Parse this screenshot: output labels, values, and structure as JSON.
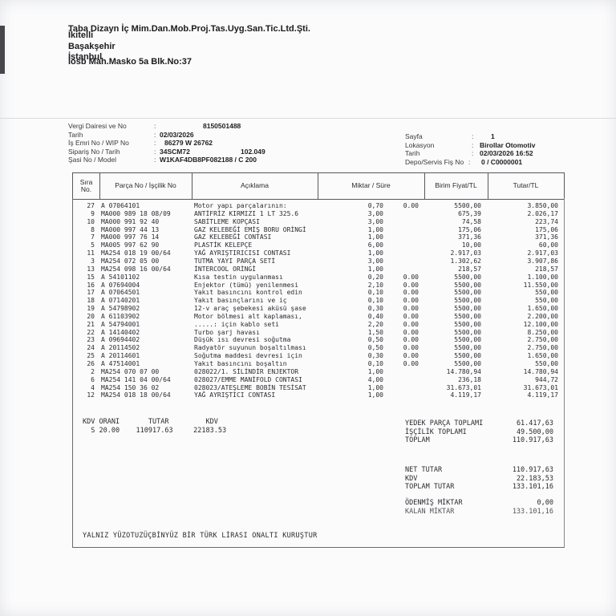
{
  "company": {
    "name": "Taba Dizayn İç Mim.Dan.Mob.Proj.Tas.Uyg.San.Tic.Ltd.Şti.",
    "street": "İosb Mah.Masko 5a Blk.No:37",
    "district": "İkitelli",
    "town": "Başakşehir",
    "city": "İstanbul"
  },
  "info_left": [
    {
      "label": "Vergi Dairesi ve No",
      "value": "8150501488"
    },
    {
      "label": "Tarih",
      "value": "02/03/2026"
    },
    {
      "label": "İş Emri No / WIP No",
      "value": "86279 W 26762"
    },
    {
      "label": "Sipariş No / Tarih",
      "value": "34SCM72",
      "extra": "102.049"
    },
    {
      "label": "Şasi No / Model",
      "value": "W1KAF4DB8PF082188  / C 200"
    }
  ],
  "info_right": [
    {
      "label": "Sayfa",
      "value": "1"
    },
    {
      "label": "Lokasyon",
      "value": "Birollar Otomotiv"
    },
    {
      "label": "Tarih",
      "value": "02/03/2026 16:52"
    },
    {
      "label": "Depo/Servis Fiş No",
      "value": "0 / C0000001"
    }
  ],
  "table": {
    "headers": {
      "no_line1": "Sıra",
      "no_line2": "No.",
      "part": "Parça No / İşçilik No",
      "desc": "Açıklama",
      "qty": "Miktar / Süre",
      "unit": "Birim Fiyat/TL",
      "total": "Tutar/TL"
    },
    "rows": [
      {
        "no": "27",
        "part": "A  07064101",
        "desc": "Motor yapı parçalarının:",
        "qty": "0,70",
        "sure": "0.00",
        "unit": "5500,00",
        "total": "3.850,00"
      },
      {
        "no": "9",
        "part": "MA000 989 18 08/09",
        "desc": "ANTİFRİZ KIRMIZI 1 LT 325.6",
        "qty": "3,00",
        "sure": "",
        "unit": "675,39",
        "total": "2.026,17"
      },
      {
        "no": "10",
        "part": "MA000 991 92 40",
        "desc": "SABİTLEME KOPÇASI",
        "qty": "3,00",
        "sure": "",
        "unit": "74,58",
        "total": "223,74"
      },
      {
        "no": "8",
        "part": "MA000 997 44 13",
        "desc": "GAZ KELEBEĞİ EMİŞ BORU ORİNGİ",
        "qty": "1,00",
        "sure": "",
        "unit": "175,06",
        "total": "175,06"
      },
      {
        "no": "7",
        "part": "MA000 997 76 14",
        "desc": "GAZ KELEBEĞİ CONTASI",
        "qty": "1,00",
        "sure": "",
        "unit": "371,36",
        "total": "371,36"
      },
      {
        "no": "5",
        "part": "MA005 997 62 90",
        "desc": "PLASTİK KELEPÇE",
        "qty": "6,00",
        "sure": "",
        "unit": "10,00",
        "total": "60,00"
      },
      {
        "no": "11",
        "part": "MA254 018 19 00/64",
        "desc": "YAĞ AYRIŞTIRICISI CONTASI",
        "qty": "1,00",
        "sure": "",
        "unit": "2.917,03",
        "total": "2.917,03"
      },
      {
        "no": "3",
        "part": "MA254 072 05 00",
        "desc": "TUTMA YAYI PARÇA SETİ",
        "qty": "3,00",
        "sure": "",
        "unit": "1.302,62",
        "total": "3.907,86"
      },
      {
        "no": "13",
        "part": "MA254 098 16 00/64",
        "desc": "İNTERCOOL ORİNGİ",
        "qty": "1,00",
        "sure": "",
        "unit": "218,57",
        "total": "218,57"
      },
      {
        "no": "15",
        "part": "A  54101102",
        "desc": "Kısa testin uygulanması",
        "qty": "0,20",
        "sure": "0.00",
        "unit": "5500,00",
        "total": "1.100,00"
      },
      {
        "no": "16",
        "part": "A  07694004",
        "desc": "Enjektor (tümü) yenilenmesi",
        "qty": "2,10",
        "sure": "0.00",
        "unit": "5500,00",
        "total": "11.550,00"
      },
      {
        "no": "17",
        "part": "A  07064501",
        "desc": "Yakıt basıncını kontrol edin",
        "qty": "0,10",
        "sure": "0.00",
        "unit": "5500,00",
        "total": "550,00"
      },
      {
        "no": "18",
        "part": "A  07140201",
        "desc": "Yakıt basınçlarını ve iç",
        "qty": "0,10",
        "sure": "0.00",
        "unit": "5500,00",
        "total": "550,00"
      },
      {
        "no": "19",
        "part": "A  54798902",
        "desc": "12-v araç şebekesi aküsü şase",
        "qty": "0,30",
        "sure": "0.00",
        "unit": "5500,00",
        "total": "1.650,00"
      },
      {
        "no": "20",
        "part": "A  61103902",
        "desc": "Motor bölmesi alt kaplaması,",
        "qty": "0,40",
        "sure": "0.00",
        "unit": "5500,00",
        "total": "2.200,00"
      },
      {
        "no": "21",
        "part": "A  54794001",
        "desc": ".....: için kablo seti",
        "qty": "2,20",
        "sure": "0.00",
        "unit": "5500,00",
        "total": "12.100,00"
      },
      {
        "no": "22",
        "part": "A  14140402",
        "desc": "Turbo şarj havası",
        "qty": "1,50",
        "sure": "0.00",
        "unit": "5500,00",
        "total": "8.250,00"
      },
      {
        "no": "23",
        "part": "A  09694402",
        "desc": "Düşük ısı devresi soğutma",
        "qty": "0,50",
        "sure": "0.00",
        "unit": "5500,00",
        "total": "2.750,00"
      },
      {
        "no": "24",
        "part": "A  20114502",
        "desc": "Radyatör suyunun boşaltılması",
        "qty": "0,50",
        "sure": "0.00",
        "unit": "5500,00",
        "total": "2.750,00"
      },
      {
        "no": "25",
        "part": "A  20114601",
        "desc": "Soğutma maddesi devresi için",
        "qty": "0,30",
        "sure": "0.00",
        "unit": "5500,00",
        "total": "1.650,00"
      },
      {
        "no": "26",
        "part": "A  47514001",
        "desc": "Yakıt basıncını boşaltın",
        "qty": "0,10",
        "sure": "0.00",
        "unit": "5500,00",
        "total": "550,00"
      },
      {
        "no": "2",
        "part": "MA254 070 07 00",
        "desc": "028022/1. SİLİNDİR ENJEKTOR",
        "qty": "1,00",
        "sure": "",
        "unit": "14.780,94",
        "total": "14.780,94"
      },
      {
        "no": "6",
        "part": "MA254 141 04 00/64",
        "desc": "028027/EMME MANİFOLD CONTASI",
        "qty": "4,00",
        "sure": "",
        "unit": "236,18",
        "total": "944,72"
      },
      {
        "no": "4",
        "part": "MA254 150 36 02",
        "desc": "028023/ATEŞLEME BOBİN TESİSAT",
        "qty": "1,00",
        "sure": "",
        "unit": "31.673,01",
        "total": "31.673,01"
      },
      {
        "no": "12",
        "part": "MA254 018 18 00/64",
        "desc": "YAĞ AYRIŞTICI CONTASI",
        "qty": "1,00",
        "sure": "",
        "unit": "4.119,17",
        "total": "4.119,17"
      }
    ]
  },
  "kdv": {
    "line1": "KDV ORANI       TUTAR         KDV",
    "line2": "  S 20.00    110917.63     22183.53"
  },
  "totals_parts": [
    {
      "label": "YEDEK PARÇA TOPLAMI",
      "value": "61.417,63"
    },
    {
      "label": "İŞÇİLİK TOPLAMI",
      "value": "49.500,00"
    },
    {
      "label": "TOPLAM",
      "value": "110.917,63"
    }
  ],
  "totals_net": [
    {
      "label": "NET TUTAR",
      "value": "110.917,63"
    },
    {
      "label": "KDV",
      "value": "22.183,53"
    },
    {
      "label": "TOPLAM TUTAR",
      "value": "133.101,16"
    }
  ],
  "totals_paid": [
    {
      "label": "ÖDENMİŞ MİKTAR",
      "value": "0,00"
    },
    {
      "label": "KALAN MİKTAR",
      "value": "133.101,16"
    }
  ],
  "amount_in_words": "YALNIZ YÜZOTUZÜÇBİNYÜZ BİR TÜRK LİRASI ONALTI KURUŞTUR"
}
